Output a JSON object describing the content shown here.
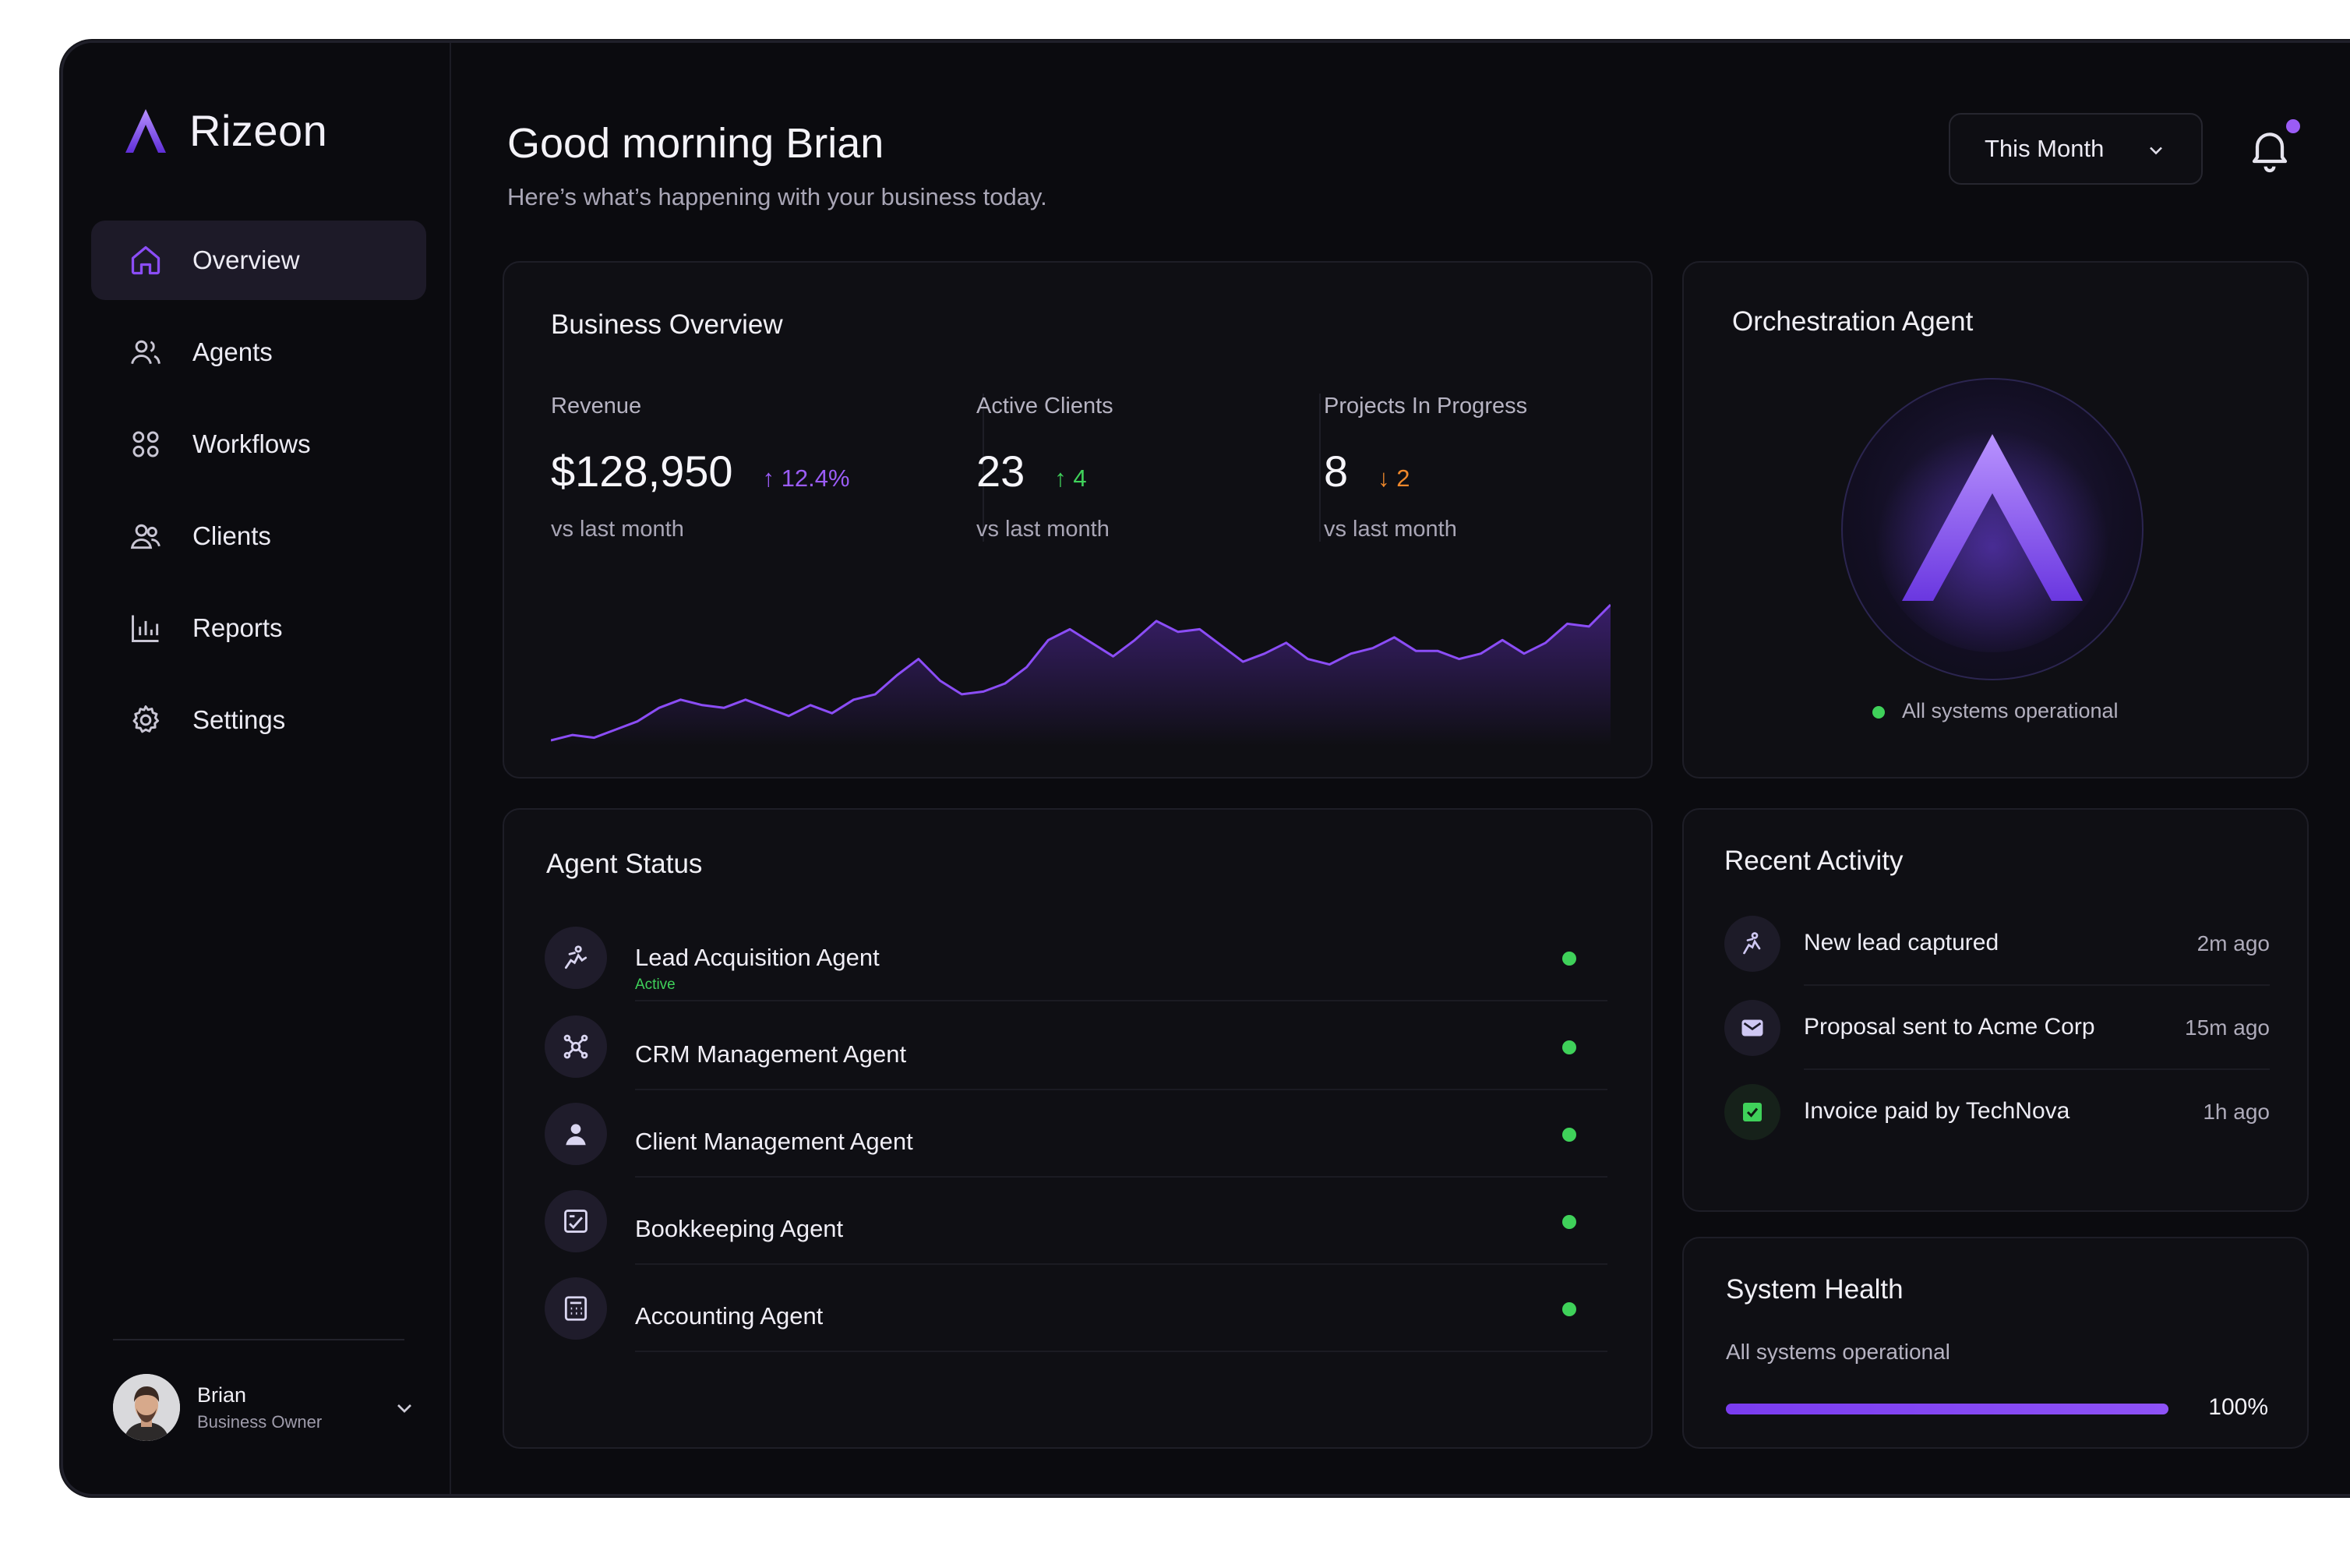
{
  "app": {
    "name": "Rizeon"
  },
  "sidebar": {
    "items": [
      {
        "label": "Overview",
        "icon": "home-icon",
        "active": true
      },
      {
        "label": "Agents",
        "icon": "agents-icon"
      },
      {
        "label": "Workflows",
        "icon": "workflows-icon"
      },
      {
        "label": "Clients",
        "icon": "clients-icon"
      },
      {
        "label": "Reports",
        "icon": "reports-icon"
      },
      {
        "label": "Settings",
        "icon": "gear-icon"
      }
    ],
    "user": {
      "name": "Brian",
      "role": "Business Owner"
    }
  },
  "header": {
    "greeting": "Good morning Brian",
    "subtitle": "Here’s what’s happening with your business today.",
    "period": "This Month"
  },
  "business_overview": {
    "title": "Business Overview",
    "stats": [
      {
        "label": "Revenue",
        "value": "$128,950",
        "delta": "↑ 12.4%",
        "direction": "up",
        "delta_color": "#9b5cf6",
        "sub": "vs last month"
      },
      {
        "label": "Active Clients",
        "value": "23",
        "delta": "↑ 4",
        "direction": "up",
        "delta_color": "#3fd15a",
        "sub": "vs last month"
      },
      {
        "label": "Projects In Progress",
        "value": "8",
        "delta": "↓ 2",
        "direction": "down",
        "delta_color": "#f0882b",
        "sub": "vs last month"
      }
    ]
  },
  "chart_data": {
    "type": "area",
    "title": "",
    "xlabel": "",
    "ylabel": "",
    "grid": false,
    "ylim": [
      0,
      100
    ],
    "series": [
      {
        "values": [
          4,
          8,
          6,
          12,
          18,
          28,
          34,
          30,
          28,
          34,
          28,
          22,
          30,
          24,
          34,
          38,
          52,
          64,
          48,
          38,
          40,
          46,
          58,
          78,
          86,
          76,
          66,
          78,
          92,
          84,
          86,
          74,
          62,
          68,
          76,
          64,
          60,
          68,
          72,
          80,
          70,
          70,
          64,
          68,
          78,
          68,
          76,
          90,
          88,
          104
        ]
      }
    ],
    "colors": {
      "line": "#8b4df6",
      "fill": "#5b2bb0"
    }
  },
  "orchestration": {
    "title": "Orchestration Agent",
    "status": "All systems operational",
    "status_color": "#3fd15a"
  },
  "agent_status": {
    "title": "Agent Status",
    "agents": [
      {
        "name": "Lead Acquisition Agent",
        "sub": "Active",
        "icon": "lead-icon"
      },
      {
        "name": "CRM Management Agent",
        "sub": "",
        "icon": "crm-icon"
      },
      {
        "name": "Client Management Agent",
        "sub": "",
        "icon": "user-icon"
      },
      {
        "name": "Bookkeeping Agent",
        "sub": "",
        "icon": "ledger-icon"
      },
      {
        "name": "Accounting Agent",
        "sub": "",
        "icon": "calculator-icon"
      }
    ]
  },
  "recent_activity": {
    "title": "Recent Activity",
    "items": [
      {
        "text": "New lead captured",
        "time": "2m ago",
        "icon": "lead-icon"
      },
      {
        "text": "Proposal sent to Acme Corp",
        "time": "15m ago",
        "icon": "mail-icon"
      },
      {
        "text": "Invoice paid by TechNova",
        "time": "1h ago",
        "icon": "invoice-icon"
      }
    ]
  },
  "system_health": {
    "title": "System Health",
    "status": "All systems operational",
    "percent_label": "100%",
    "level": 1.0
  },
  "colors": {
    "accent": "#8b4df6",
    "success": "#3fd15a",
    "warning": "#f0882b",
    "background": "#0b0b0f"
  }
}
